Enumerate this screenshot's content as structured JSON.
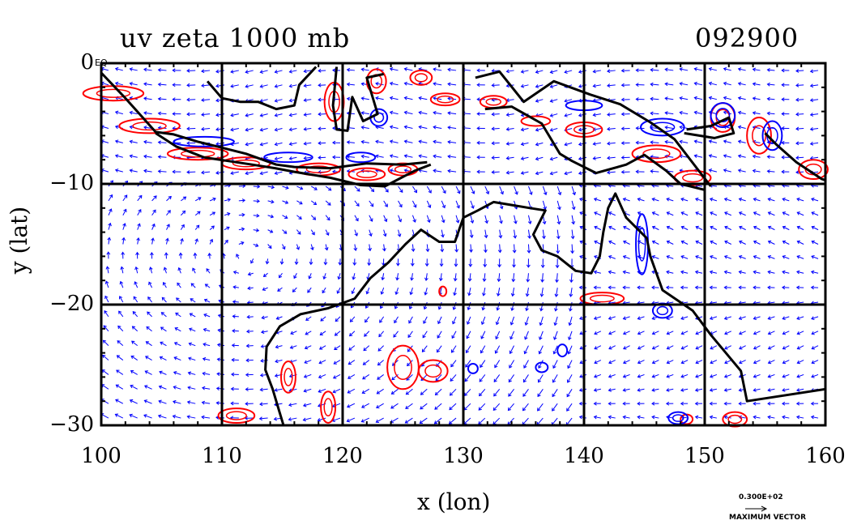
{
  "title_left": "uv zeta 1000 mb",
  "title_right": "092900",
  "x_axis_label": "x (lon)",
  "y_axis_label": "y (lat)",
  "x_ticks": [
    "100",
    "110",
    "120",
    "130",
    "140",
    "150",
    "160"
  ],
  "y_ticks": [
    "0",
    "−10",
    "−20",
    "−30"
  ],
  "equator_label": "EQ",
  "vector_legend": {
    "value": "0.300E+02",
    "label": "MAXIMUM VECTOR"
  },
  "colors": {
    "vectors": "#0000ff",
    "positive_contour": "#ff0000",
    "negative_contour": "#0000ff",
    "coastline": "#000000",
    "grid": "#000000"
  },
  "chart_data": {
    "type": "vector-field with contours",
    "x_range": [
      100,
      160
    ],
    "y_range": [
      -30,
      0
    ],
    "grid_lon": [
      110,
      120,
      130,
      140,
      150
    ],
    "grid_lat": [
      -10,
      -20
    ],
    "grid": true,
    "vector_units_max": 30,
    "level_mb": 1000,
    "date_code": "092900"
  }
}
